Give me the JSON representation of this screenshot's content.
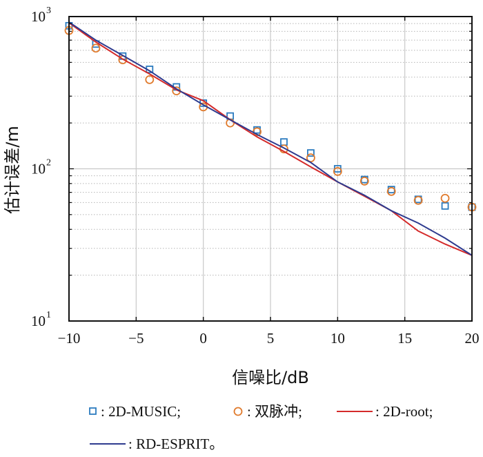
{
  "chart_data": {
    "type": "line",
    "title": "",
    "xlabel": "信噪比/dB",
    "ylabel": "估计误差/m",
    "xlim": [
      -10,
      20
    ],
    "ylim": [
      10,
      1000
    ],
    "yscale": "log",
    "x_ticks": [
      -10,
      -5,
      0,
      5,
      10,
      15,
      20
    ],
    "x_tick_labels": [
      "−10",
      "−5",
      "0",
      "5",
      "10",
      "15",
      "20"
    ],
    "y_ticks": [
      {
        "base": "10",
        "exp": "3",
        "value": 1000
      },
      {
        "base": "10",
        "exp": "2",
        "value": 100
      },
      {
        "base": "10",
        "exp": "1",
        "value": 10
      }
    ],
    "grid": true,
    "legend_position": "bottom",
    "series": [
      {
        "name": "2D-MUSIC",
        "legend_label": ": 2D-MUSIC;",
        "marker": "square",
        "color": "#2b7bbf",
        "x": [
          -10,
          -8,
          -6,
          -4,
          -2,
          0,
          2,
          4,
          6,
          8,
          10,
          12,
          14,
          16,
          18,
          20
        ],
        "y": [
          870,
          660,
          550,
          450,
          345,
          270,
          222,
          180,
          150,
          127,
          100,
          85,
          73,
          63,
          57,
          56
        ]
      },
      {
        "name": "双脉冲",
        "legend_label": ": 双脉冲;",
        "marker": "circle",
        "color": "#e07a2c",
        "x": [
          -10,
          -8,
          -6,
          -4,
          -2,
          0,
          2,
          4,
          6,
          8,
          10,
          12,
          14,
          16,
          18,
          20
        ],
        "y": [
          810,
          620,
          520,
          385,
          325,
          255,
          200,
          175,
          135,
          118,
          96,
          83,
          71,
          62,
          64,
          56
        ]
      },
      {
        "name": "2D-root",
        "legend_label": ": 2D-root;",
        "marker": "line",
        "color": "#d42a2a",
        "x": [
          -10,
          -8,
          -6,
          -4,
          -2,
          0,
          2,
          4,
          6,
          8,
          10,
          12,
          14,
          16,
          18,
          20
        ],
        "y": [
          910,
          680,
          525,
          420,
          330,
          280,
          210,
          162,
          130,
          103,
          82,
          66,
          53,
          39,
          32,
          27
        ]
      },
      {
        "name": "RD-ESPRIT",
        "legend_label": ": RD-ESPRIT。",
        "marker": "line",
        "color": "#2e3b8f",
        "x": [
          -10,
          -8,
          -6,
          -4,
          -2,
          0,
          2,
          4,
          6,
          8,
          10,
          12,
          14,
          16,
          18,
          20
        ],
        "y": [
          920,
          700,
          555,
          440,
          335,
          263,
          210,
          168,
          137,
          110,
          82,
          67,
          53,
          44,
          35,
          27
        ]
      }
    ]
  }
}
